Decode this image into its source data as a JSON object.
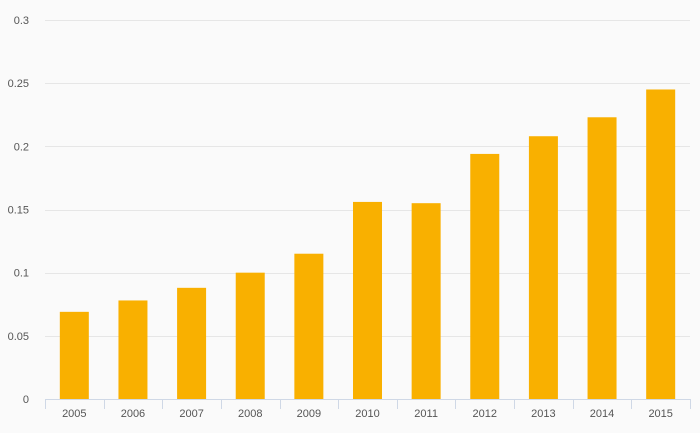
{
  "chart_data": {
    "type": "bar",
    "title": "",
    "xlabel": "",
    "ylabel": "",
    "categories": [
      "2005",
      "2006",
      "2007",
      "2008",
      "2009",
      "2010",
      "2011",
      "2012",
      "2013",
      "2014",
      "2015"
    ],
    "values": [
      0.069,
      0.078,
      0.088,
      0.1,
      0.115,
      0.156,
      0.155,
      0.194,
      0.208,
      0.223,
      0.245
    ],
    "ylim": [
      0,
      0.3
    ],
    "yticks": [
      0,
      0.05,
      0.1,
      0.15,
      0.2,
      0.25,
      0.3
    ],
    "ytick_labels": [
      "0",
      "0.05",
      "0.1",
      "0.15",
      "0.2",
      "0.25",
      "0.3"
    ],
    "grid": true,
    "legend": "none",
    "bar_color": "#f9b000",
    "background_color": "#fafafa"
  }
}
